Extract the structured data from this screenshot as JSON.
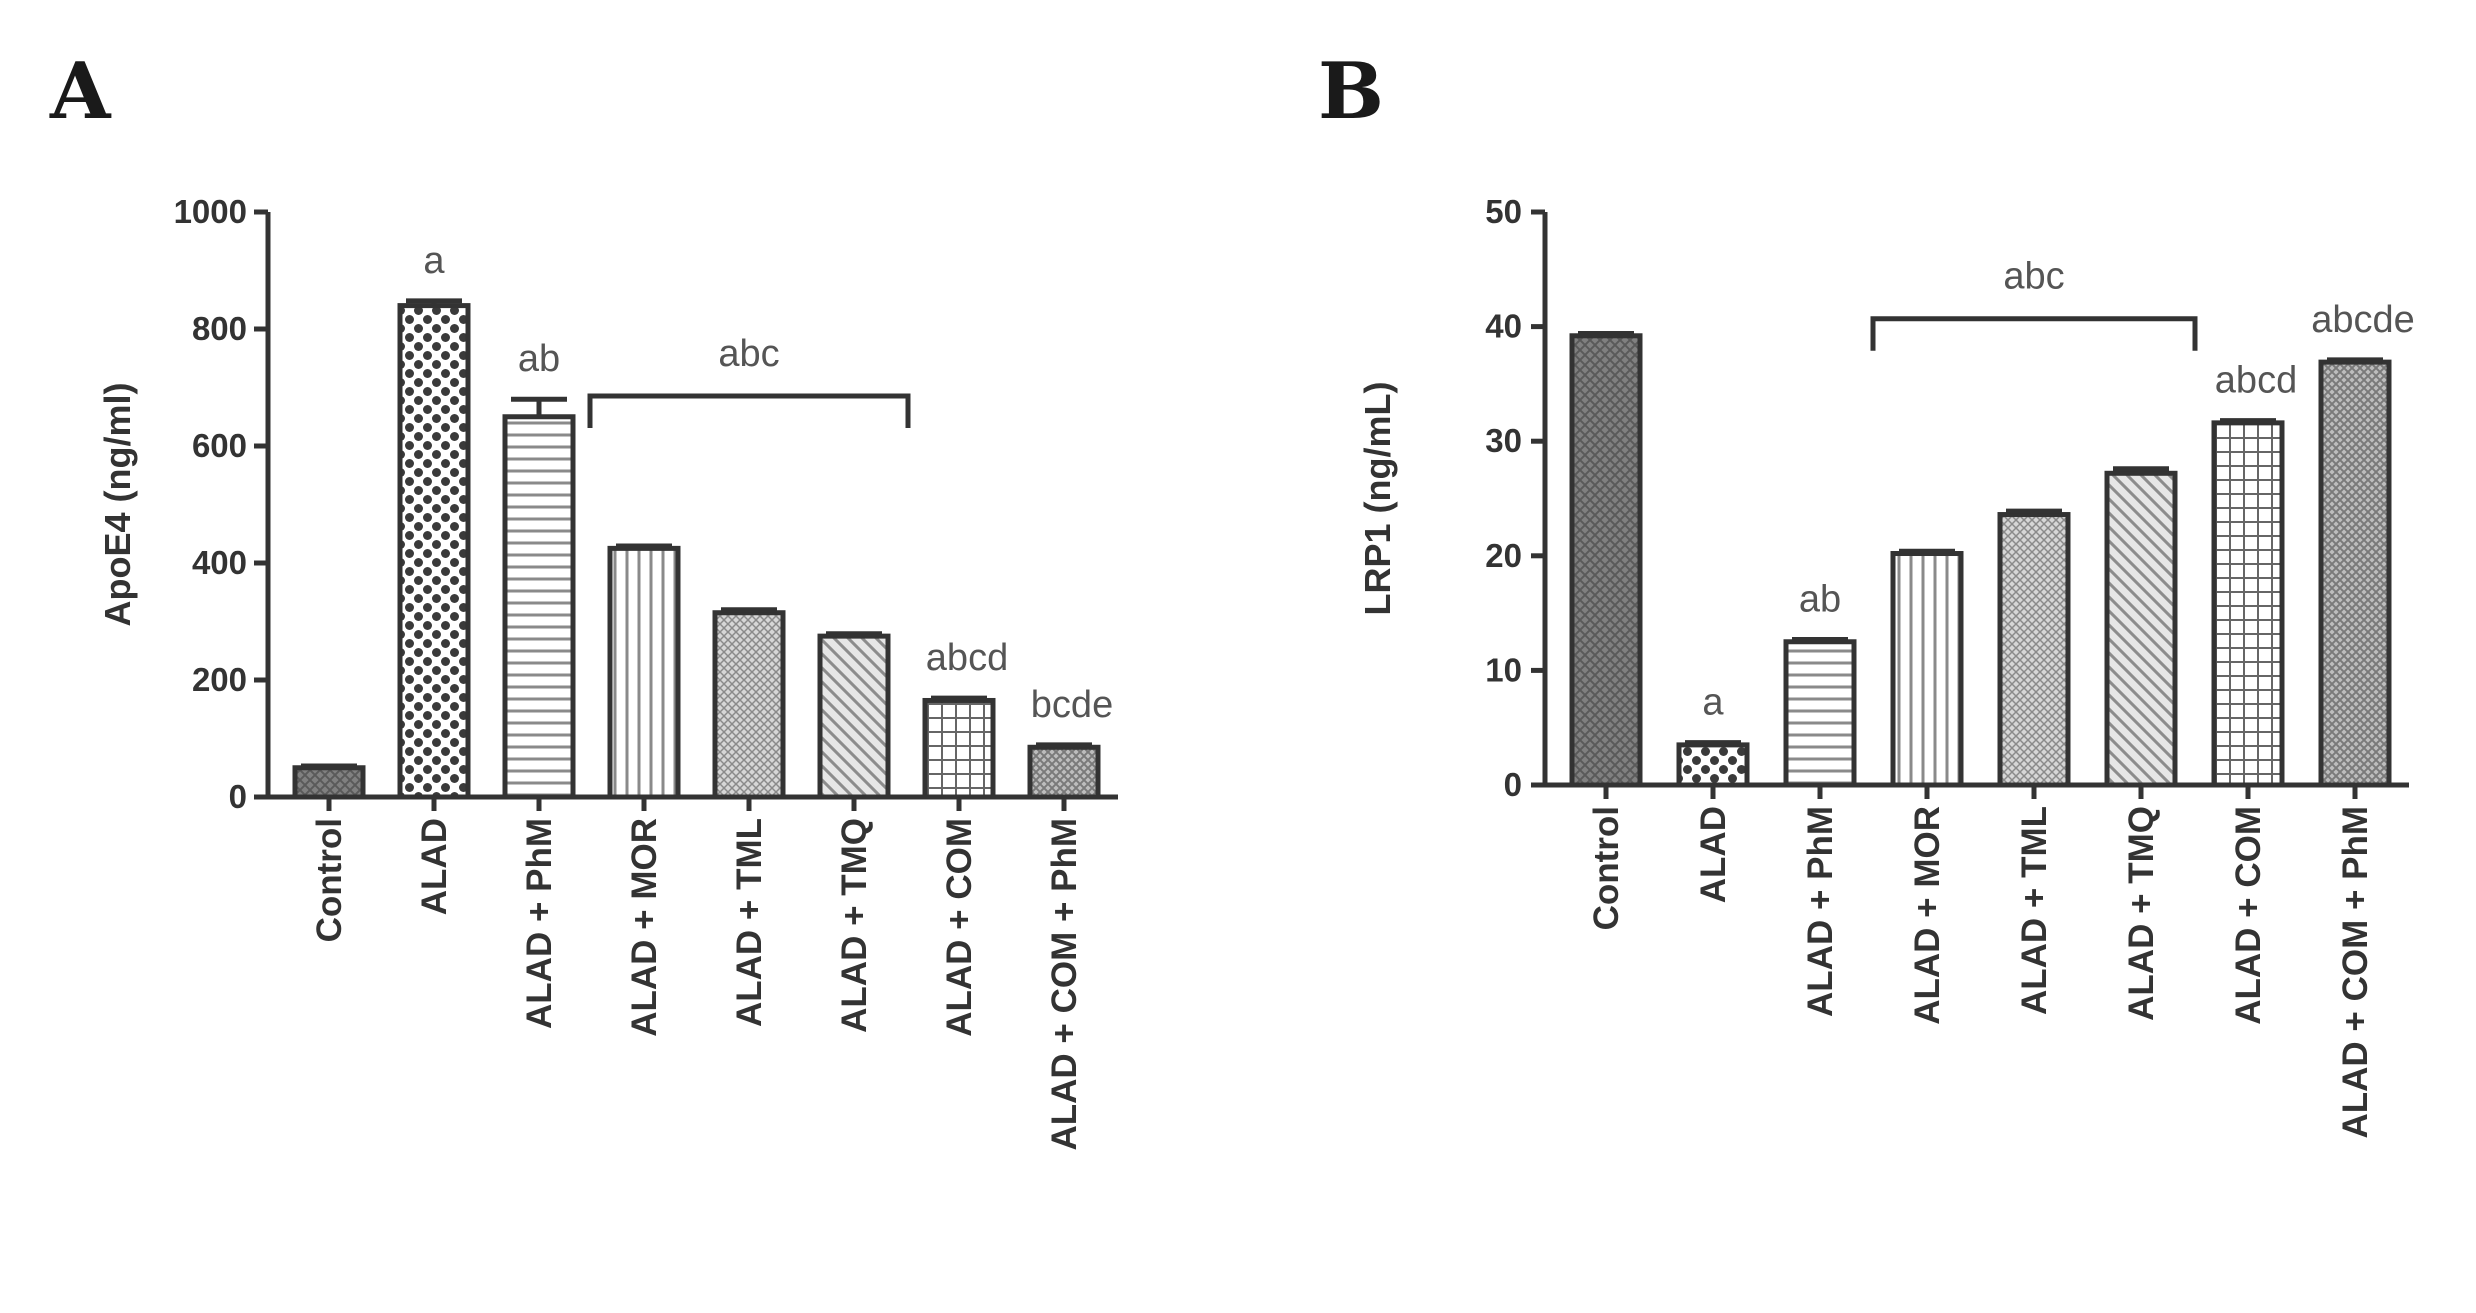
{
  "chart_data": [
    {
      "type": "bar",
      "panel": "A",
      "ylabel": "ApoE4 (ng/ml)",
      "ylim": [
        0,
        1000
      ],
      "yticks": [
        0,
        200,
        400,
        600,
        800,
        1000
      ],
      "categories": [
        "Control",
        "ALAD",
        "ALAD + PhM",
        "ALAD + MOR",
        "ALAD + TML",
        "ALAD + TMQ",
        "ALAD + COM",
        "ALAD + COM + PhM"
      ],
      "values": [
        50,
        840,
        650,
        425,
        315,
        275,
        165,
        85
      ],
      "errors": [
        3,
        8,
        30,
        4,
        5,
        4,
        4,
        4
      ],
      "significance": [
        "",
        "a",
        "ab",
        "",
        "",
        "",
        "abcd",
        "bcde"
      ],
      "bracket": {
        "label": "abc",
        "from": 3,
        "to": 5
      }
    },
    {
      "type": "bar",
      "panel": "B",
      "ylabel": "LRP1 (ng/mL)",
      "ylim": [
        0,
        50
      ],
      "yticks": [
        0,
        10,
        20,
        30,
        40,
        50
      ],
      "categories": [
        "Control",
        "ALAD",
        "ALAD + PhM",
        "ALAD + MOR",
        "ALAD + TML",
        "ALAD + TMQ",
        "ALAD + COM",
        "ALAD + COM + PhM"
      ],
      "values": [
        39.2,
        3.5,
        12.5,
        20.2,
        23.6,
        27.2,
        31.6,
        36.9
      ],
      "errors": [
        0.2,
        0.2,
        0.2,
        0.2,
        0.3,
        0.4,
        0.2,
        0.2
      ],
      "significance": [
        "",
        "a",
        "ab",
        "",
        "",
        "",
        "abcd",
        "abcde"
      ],
      "bracket": {
        "label": "abc",
        "from": 3,
        "to": 5
      }
    }
  ]
}
